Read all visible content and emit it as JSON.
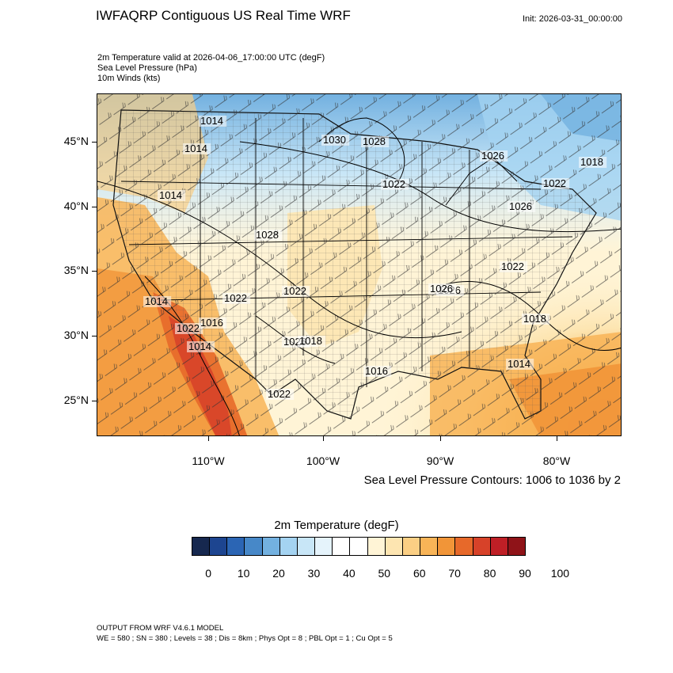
{
  "title": "IWFAQRP Contiguous US Real Time WRF",
  "init": "Init: 2026-03-31_00:00:00",
  "fields": [
    "2m Temperature valid at 2026-04-06_17:00:00 UTC   (degF)",
    "Sea Level Pressure   (hPa)",
    "10m Winds   (kts)"
  ],
  "lat_labels": [
    "45°N",
    "40°N",
    "35°N",
    "30°N",
    "25°N"
  ],
  "lon_labels": [
    "110°W",
    "100°W",
    "90°W",
    "80°W"
  ],
  "contour_note": "Sea Level Pressure Contours: 1006 to 1036 by 2",
  "isobar_labels": [
    "1014",
    "1014",
    "1014",
    "1030",
    "1028",
    "1026",
    "1018",
    "1022",
    "1022",
    "1028",
    "1026",
    "1026",
    "1022",
    "1022",
    "1022",
    "1026",
    "1014",
    "1022",
    "1016",
    "1014",
    "1018",
    "1026",
    "1016",
    "1018",
    "1014",
    "1022"
  ],
  "colorbar": {
    "title": "2m Temperature  (degF)",
    "colors": [
      "#16284f",
      "#1d4590",
      "#2b65b4",
      "#4788c8",
      "#73b1e0",
      "#a4d3f1",
      "#c8e6f7",
      "#e5f3fb",
      "#ffffff",
      "#ffffff",
      "#fff4d6",
      "#fde5b1",
      "#fbcf84",
      "#f8b457",
      "#f19538",
      "#e7692a",
      "#d74229",
      "#bf1f26",
      "#8f1318"
    ],
    "labels": [
      "0",
      "10",
      "20",
      "30",
      "40",
      "50",
      "60",
      "70",
      "80",
      "90",
      "100"
    ]
  },
  "footer": [
    "OUTPUT FROM WRF V4.6.1 MODEL",
    "WE = 580 ; SN = 380 ; Levels = 38 ; Dis = 8km ; Phys Opt = 8 ; PBL Opt = 1 ; Cu Opt = 5"
  ]
}
